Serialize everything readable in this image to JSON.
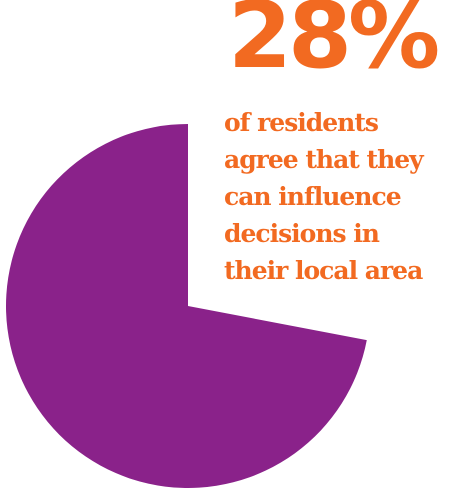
{
  "colors": {
    "pie_main": "#8a228a",
    "text_accent": "#f26a21"
  },
  "headline": "28%",
  "caption_lines": [
    "of residents",
    "agree that they",
    "can influence",
    "decisions in",
    "their local area"
  ],
  "chart_data": {
    "type": "pie",
    "title": "",
    "slices": [
      {
        "label": "",
        "value": 28,
        "shown": false
      },
      {
        "label": "",
        "value": 72,
        "shown": true
      }
    ]
  }
}
